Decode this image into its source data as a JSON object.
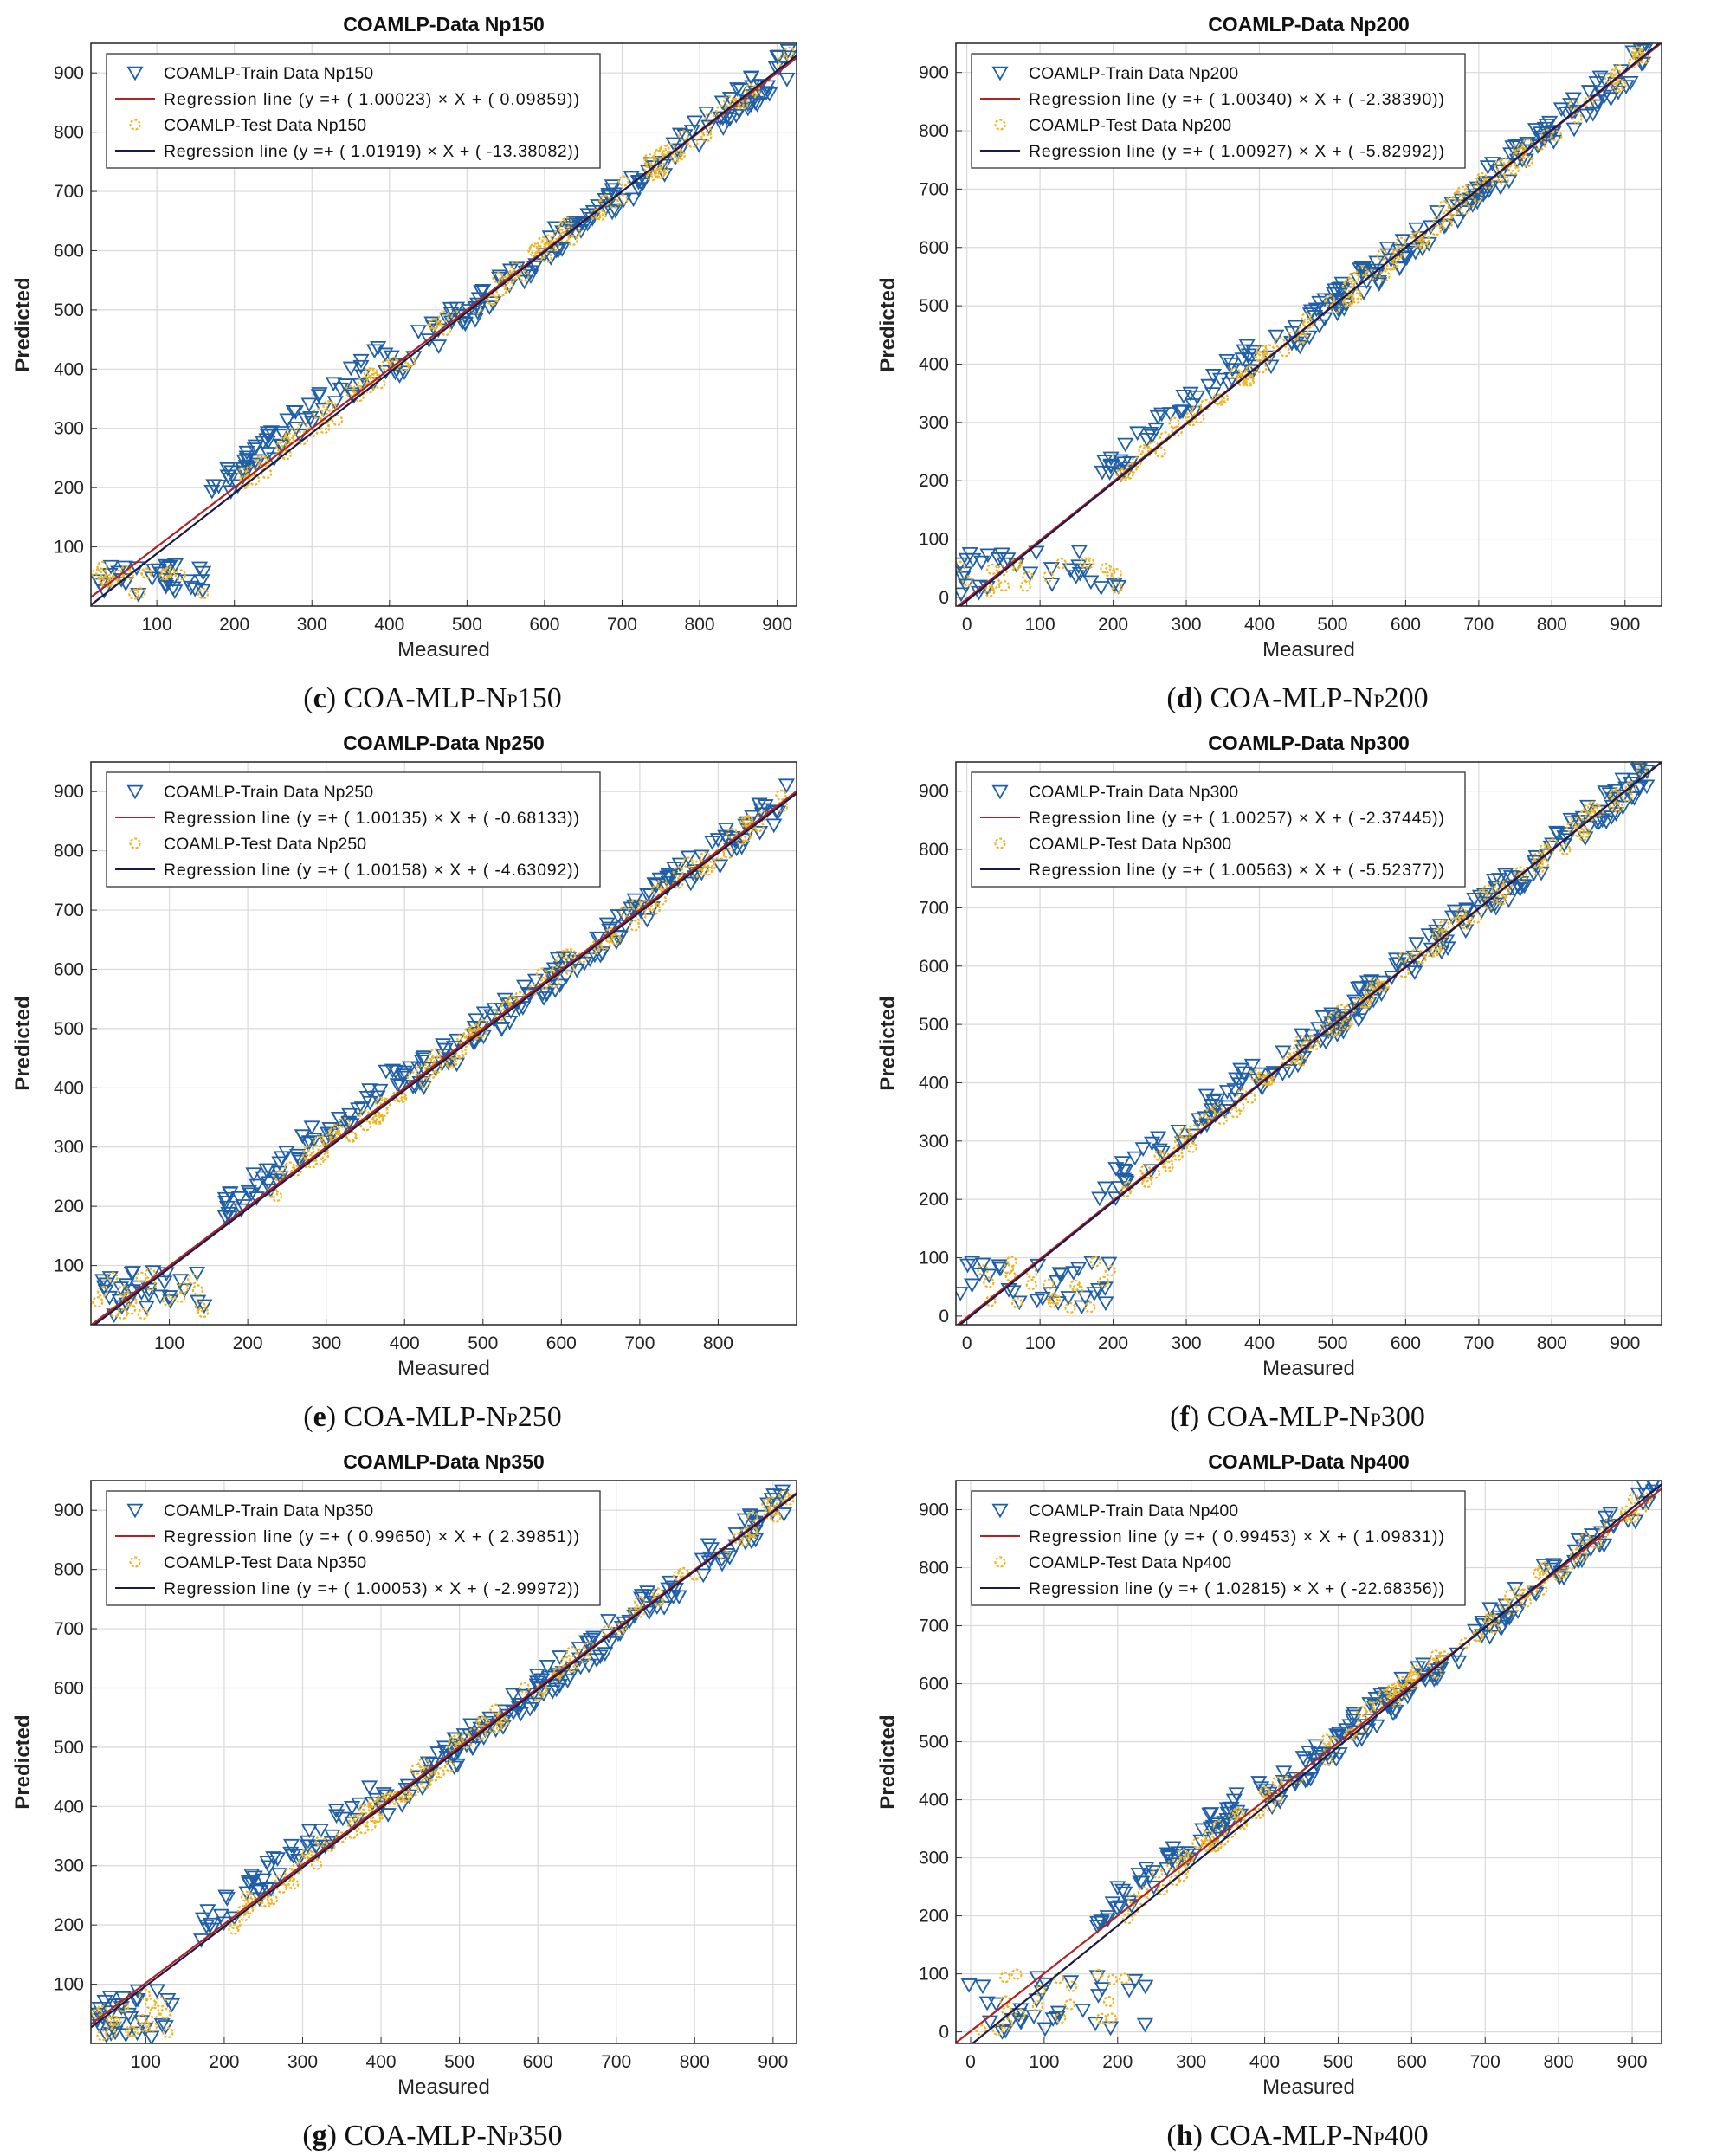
{
  "figure": {
    "panels": [
      {
        "id": "c",
        "caption_letter": "c",
        "caption_main": "COA-MLP-N",
        "caption_sub": "P",
        "caption_end": "150"
      },
      {
        "id": "d",
        "caption_letter": "d",
        "caption_main": "COA-MLP-N",
        "caption_sub": "P",
        "caption_end": "200"
      },
      {
        "id": "e",
        "caption_letter": "e",
        "caption_main": "COA-MLP-N",
        "caption_sub": "P",
        "caption_end": "250"
      },
      {
        "id": "f",
        "caption_letter": "f",
        "caption_main": "COA-MLP-N",
        "caption_sub": "P",
        "caption_end": "300"
      },
      {
        "id": "g",
        "caption_letter": "g",
        "caption_main": "COA-MLP-N",
        "caption_sub": "P",
        "caption_end": "350"
      },
      {
        "id": "h",
        "caption_letter": "h",
        "caption_main": "COA-MLP-N",
        "caption_sub": "P",
        "caption_end": "400"
      }
    ]
  },
  "colors": {
    "train": "#1f5fa8",
    "test": "#f0b41e",
    "reg_train": "#b22222",
    "reg_test": "#1a1a4a",
    "grid": "#d9d9d9"
  },
  "chart_data": [
    {
      "type": "scatter",
      "title": "COAMLP-Data Np150",
      "xlabel": "Measured",
      "ylabel": "Predicted",
      "xlim": [
        15,
        925
      ],
      "ylim": [
        0,
        950
      ],
      "xticks": [
        100,
        200,
        300,
        400,
        500,
        600,
        700,
        800,
        900
      ],
      "yticks": [
        100,
        200,
        300,
        400,
        500,
        600,
        700,
        800,
        900
      ],
      "legend": [
        "COAMLP-Train Data Np150",
        "Regression line (y =+ ( 1.00023) × X + ( 0.09859))",
        "COAMLP-Test Data Np150",
        "Regression line (y =+ ( 1.01919) × X + ( -13.38082))"
      ],
      "train_line": {
        "slope": 1.00023,
        "intercept": 0.09859
      },
      "test_line": {
        "slope": 1.01919,
        "intercept": -13.38082
      },
      "low_cluster": {
        "x": [
          20,
          160
        ],
        "y": [
          20,
          70
        ]
      }
    },
    {
      "type": "scatter",
      "title": "COAMLP-Data Np200",
      "xlabel": "Measured",
      "ylabel": "Predicted",
      "xlim": [
        -15,
        950
      ],
      "ylim": [
        -15,
        950
      ],
      "xticks": [
        0,
        100,
        200,
        300,
        400,
        500,
        600,
        700,
        800,
        900
      ],
      "yticks": [
        0,
        100,
        200,
        300,
        400,
        500,
        600,
        700,
        800,
        900
      ],
      "legend": [
        "COAMLP-Train Data Np200",
        "Regression line (y =+ ( 1.00340) × X + ( -2.38390))",
        "COAMLP-Test Data Np200",
        "Regression line (y =+ ( 1.00927) × X + ( -5.82992))"
      ],
      "train_line": {
        "slope": 1.0034,
        "intercept": -2.3839
      },
      "test_line": {
        "slope": 1.00927,
        "intercept": -5.82992
      },
      "low_cluster": {
        "x": [
          -10,
          210
        ],
        "y": [
          5,
          85
        ]
      }
    },
    {
      "type": "scatter",
      "title": "COAMLP-Data Np250",
      "xlabel": "Measured",
      "ylabel": "Predicted",
      "xlim": [
        0,
        900
      ],
      "ylim": [
        0,
        950
      ],
      "xticks": [
        100,
        200,
        300,
        400,
        500,
        600,
        700,
        800
      ],
      "yticks": [
        100,
        200,
        300,
        400,
        500,
        600,
        700,
        800,
        900
      ],
      "legend": [
        "COAMLP-Train Data Np250",
        "Regression line (y =+ ( 1.00135) × X + ( -0.68133))",
        "COAMLP-Test Data Np250",
        "Regression line (y =+ ( 1.00158) × X + ( -4.63092))"
      ],
      "train_line": {
        "slope": 1.00135,
        "intercept": -0.68133
      },
      "test_line": {
        "slope": 1.00158,
        "intercept": -4.63092
      },
      "low_cluster": {
        "x": [
          0,
          150
        ],
        "y": [
          15,
          90
        ]
      }
    },
    {
      "type": "scatter",
      "title": "COAMLP-Data Np300",
      "xlabel": "Measured",
      "ylabel": "Predicted",
      "xlim": [
        -15,
        950
      ],
      "ylim": [
        -15,
        950
      ],
      "xticks": [
        0,
        100,
        200,
        300,
        400,
        500,
        600,
        700,
        800,
        900
      ],
      "yticks": [
        0,
        100,
        200,
        300,
        400,
        500,
        600,
        700,
        800,
        900
      ],
      "legend": [
        "COAMLP-Train Data Np300",
        "Regression line (y =+ ( 1.00257) × X + ( -2.37445))",
        "COAMLP-Test Data Np300",
        "Regression line (y =+ ( 1.00563) × X + ( -5.52377))"
      ],
      "train_line": {
        "slope": 1.00257,
        "intercept": -2.37445
      },
      "test_line": {
        "slope": 1.00563,
        "intercept": -5.52377
      },
      "low_cluster": {
        "x": [
          -10,
          200
        ],
        "y": [
          5,
          95
        ]
      }
    },
    {
      "type": "scatter",
      "title": "COAMLP-Data Np350",
      "xlabel": "Measured",
      "ylabel": "Predicted",
      "xlim": [
        30,
        930
      ],
      "ylim": [
        0,
        950
      ],
      "xticks": [
        100,
        200,
        300,
        400,
        500,
        600,
        700,
        800,
        900
      ],
      "yticks": [
        100,
        200,
        300,
        400,
        500,
        600,
        700,
        800,
        900
      ],
      "legend": [
        "COAMLP-Train Data Np350",
        "Regression line (y =+ ( 0.99650) × X + ( 2.39851))",
        "COAMLP-Test Data Np350",
        "Regression line (y =+ ( 1.00053) × X + ( -2.99972))"
      ],
      "train_line": {
        "slope": 0.9965,
        "intercept": 2.39851
      },
      "test_line": {
        "slope": 1.00053,
        "intercept": -2.99972
      },
      "low_cluster": {
        "x": [
          35,
          135
        ],
        "y": [
          10,
          90
        ]
      }
    },
    {
      "type": "scatter",
      "title": "COAMLP-Data Np400",
      "xlabel": "Measured",
      "ylabel": "Predicted",
      "xlim": [
        -20,
        940
      ],
      "ylim": [
        -20,
        950
      ],
      "xticks": [
        0,
        100,
        200,
        300,
        400,
        500,
        600,
        700,
        800,
        900
      ],
      "yticks": [
        0,
        100,
        200,
        300,
        400,
        500,
        600,
        700,
        800,
        900
      ],
      "legend": [
        "COAMLP-Train Data Np400",
        "Regression line (y =+ ( 0.99453) × X + ( 1.09831))",
        "COAMLP-Test Data Np400",
        "Regression line (y =+ ( 1.02815) × X + ( -22.68356))"
      ],
      "train_line": {
        "slope": 0.99453,
        "intercept": 1.09831
      },
      "test_line": {
        "slope": 1.02815,
        "intercept": -22.68356
      },
      "low_cluster": {
        "x": [
          -15,
          240
        ],
        "y": [
          0,
          100
        ]
      }
    }
  ]
}
